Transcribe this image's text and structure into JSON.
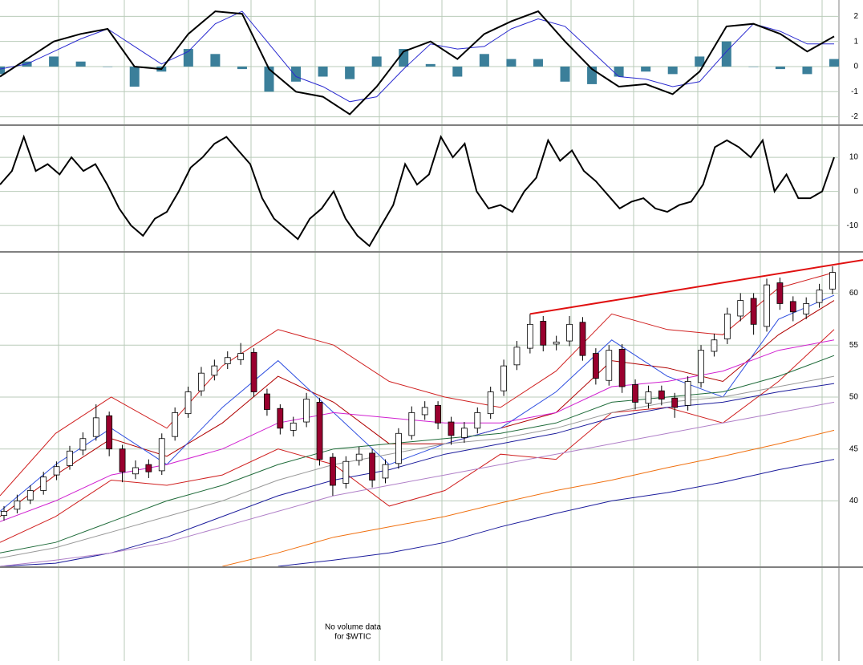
{
  "chart_data": [
    {
      "type": "line",
      "ylim": [
        -2.3,
        2.65
      ],
      "yticks": [
        2,
        1,
        0,
        -1,
        -2
      ],
      "grid": true,
      "series": [
        {
          "type": "bar",
          "color": "#3b7f9a",
          "values": [
            -0.3,
            0.2,
            0.4,
            0.2,
            0.0,
            -0.8,
            -0.2,
            0.7,
            0.5,
            -0.1,
            -1.0,
            -0.6,
            -0.4,
            -0.5,
            0.4,
            0.7,
            0.1,
            -0.4,
            0.5,
            0.3,
            0.3,
            -0.6,
            -0.7,
            -0.4,
            -0.2,
            -0.3,
            0.4,
            1.0,
            0.0,
            -0.1,
            -0.3,
            0.3
          ]
        },
        {
          "type": "line",
          "color": "#2a2ad0",
          "values": [
            -0.1,
            0.1,
            0.6,
            1.1,
            1.5,
            0.8,
            0.1,
            0.6,
            1.7,
            2.2,
            0.9,
            -0.4,
            -0.8,
            -1.4,
            -1.2,
            -0.1,
            0.9,
            0.7,
            0.8,
            1.5,
            1.9,
            1.6,
            0.6,
            -0.4,
            -0.5,
            -0.8,
            -0.6,
            0.6,
            1.7,
            1.4,
            0.9,
            0.9
          ]
        },
        {
          "type": "line",
          "color": "#000000",
          "values": [
            -0.4,
            0.3,
            1.0,
            1.3,
            1.5,
            0.0,
            -0.1,
            1.3,
            2.2,
            2.1,
            -0.1,
            -1.0,
            -1.2,
            -1.9,
            -0.8,
            0.6,
            1.0,
            0.3,
            1.3,
            1.8,
            2.2,
            1.0,
            -0.1,
            -0.8,
            -0.7,
            -1.1,
            -0.2,
            1.6,
            1.7,
            1.3,
            0.6,
            1.2
          ]
        }
      ]
    },
    {
      "type": "line",
      "ylim": [
        -17.5,
        19.2
      ],
      "yticks": [
        10,
        0,
        -10
      ],
      "grid": true,
      "series": [
        {
          "type": "line",
          "color": "#000000",
          "values": [
            2,
            6,
            16,
            6,
            8,
            5,
            10,
            6,
            8,
            2,
            -5,
            -10,
            -13,
            -8,
            -6,
            0,
            7,
            10,
            14,
            16,
            12,
            8,
            -2,
            -8,
            -11,
            -14,
            -8,
            -5,
            0,
            -8,
            -13,
            -16,
            -10,
            -4,
            8,
            2,
            5,
            16,
            10,
            14,
            0,
            -5,
            -4,
            -6,
            0,
            4,
            15,
            9,
            12,
            6,
            3,
            -1,
            -5,
            -3,
            -2,
            -5,
            -6,
            -4,
            -3,
            2,
            13,
            15,
            13,
            10,
            15,
            0,
            5,
            -2,
            -2,
            0,
            10
          ]
        }
      ]
    },
    {
      "type": "candlestick",
      "ylim": [
        33.7,
        63.9
      ],
      "yticks": [
        60,
        55,
        50,
        45,
        40
      ],
      "grid": true,
      "up_color": "#ffffff",
      "down_color": "#99002e",
      "open": [
        38.6,
        39.2,
        40.1,
        41.0,
        42.5,
        43.4,
        44.9,
        46.2,
        48.2,
        45.0,
        42.6,
        43.5,
        42.9,
        46.2,
        48.4,
        50.6,
        52.1,
        53.2,
        53.6,
        54.3,
        50.3,
        48.9,
        46.8,
        47.6,
        49.5,
        44.2,
        41.7,
        43.9,
        44.6,
        42.2,
        43.6,
        46.3,
        48.3,
        49.2,
        47.6,
        46.1,
        47.0,
        48.4,
        50.6,
        53.1,
        54.7,
        57.3,
        55.1,
        55.4,
        57.2,
        54.2,
        51.6,
        54.6,
        51.2,
        49.4,
        50.6,
        49.9,
        49.2,
        51.4,
        54.4,
        55.6,
        57.8,
        59.5,
        56.8,
        61.0,
        59.2,
        58.0,
        59.1,
        60.4
      ],
      "high": [
        39.5,
        40.6,
        41.5,
        42.8,
        43.8,
        45.3,
        46.6,
        49.3,
        48.6,
        45.4,
        43.9,
        44.0,
        46.5,
        49.0,
        51.0,
        52.9,
        53.6,
        54.4,
        55.2,
        54.7,
        50.8,
        49.3,
        48.1,
        50.4,
        49.9,
        44.6,
        44.3,
        45.2,
        45.0,
        44.0,
        47.0,
        49.1,
        49.6,
        49.6,
        48.1,
        47.6,
        49.0,
        51.0,
        53.6,
        55.4,
        58.0,
        57.8,
        55.9,
        57.8,
        57.7,
        54.7,
        55.0,
        55.1,
        51.7,
        51.1,
        51.1,
        50.4,
        52.0,
        55.0,
        56.1,
        58.6,
        60.0,
        60.0,
        61.4,
        61.5,
        59.7,
        59.6,
        60.9,
        62.6
      ],
      "low": [
        38.1,
        38.8,
        39.7,
        40.6,
        42.0,
        43.0,
        44.4,
        45.8,
        44.3,
        41.8,
        42.1,
        42.2,
        42.5,
        45.8,
        48.0,
        50.1,
        51.6,
        52.7,
        53.1,
        50.0,
        48.2,
        46.4,
        46.2,
        47.1,
        43.4,
        40.5,
        41.2,
        43.4,
        41.3,
        41.7,
        43.1,
        45.9,
        47.8,
        46.9,
        45.4,
        45.6,
        46.5,
        47.9,
        50.1,
        52.6,
        54.2,
        54.4,
        54.5,
        54.9,
        53.5,
        51.2,
        51.1,
        50.4,
        48.8,
        48.9,
        49.2,
        48.0,
        48.7,
        50.9,
        53.9,
        55.1,
        57.3,
        56.0,
        56.3,
        58.4,
        57.3,
        57.5,
        58.6,
        59.9
      ],
      "close": [
        39.0,
        40.0,
        41.0,
        42.3,
        43.3,
        44.8,
        46.0,
        48.0,
        45.0,
        42.8,
        43.2,
        42.8,
        46.0,
        48.5,
        50.5,
        52.3,
        53.0,
        53.8,
        54.2,
        50.5,
        48.8,
        47.0,
        47.5,
        49.8,
        44.0,
        41.5,
        43.8,
        44.5,
        42.0,
        43.5,
        46.5,
        48.5,
        49.0,
        47.5,
        46.3,
        47.0,
        48.5,
        50.5,
        53.0,
        54.8,
        57.0,
        55.0,
        55.3,
        57.0,
        54.0,
        51.8,
        54.5,
        51.0,
        49.5,
        50.5,
        49.8,
        49.0,
        51.5,
        54.5,
        55.5,
        58.0,
        59.3,
        57.0,
        60.8,
        59.0,
        58.2,
        59.0,
        60.3,
        62.0
      ],
      "series": [
        {
          "color": "#d02020",
          "values": [
            40.5,
            46.5,
            50.0,
            47.0,
            53.0,
            56.5,
            55.0,
            51.5,
            50.0,
            49.0,
            52.5,
            58.0,
            56.5,
            56.0,
            60.5,
            62.0
          ]
        },
        {
          "color": "#d02020",
          "values": [
            36.0,
            38.5,
            42.0,
            41.5,
            42.5,
            45.0,
            43.5,
            39.5,
            41.0,
            44.5,
            44.0,
            48.5,
            49.0,
            47.5,
            51.5,
            56.5
          ]
        },
        {
          "color": "#b00000",
          "values": [
            38.5,
            42.5,
            46.0,
            44.3,
            47.5,
            52.0,
            49.5,
            45.5,
            45.5,
            47.0,
            48.5,
            53.5,
            52.8,
            51.5,
            56.0,
            59.3
          ]
        },
        {
          "color": "#3050e0",
          "values": [
            39.0,
            43.5,
            47.0,
            43.5,
            49.0,
            53.5,
            48.5,
            43.5,
            45.5,
            47.0,
            50.5,
            55.5,
            52.0,
            50.0,
            57.5,
            59.8
          ]
        },
        {
          "color": "#d020d0",
          "values": [
            38.0,
            40.0,
            42.5,
            43.5,
            45.0,
            47.5,
            48.5,
            48.0,
            47.5,
            47.5,
            48.5,
            51.0,
            51.5,
            52.5,
            54.5,
            55.5
          ]
        },
        {
          "color": "#1f6b3a",
          "values": [
            35.0,
            36.0,
            38.0,
            40.0,
            41.5,
            43.5,
            45.0,
            45.5,
            46.0,
            46.5,
            47.5,
            49.5,
            50.0,
            50.5,
            52.0,
            54.0
          ]
        },
        {
          "color": "#999999",
          "values": [
            34.5,
            35.5,
            37.0,
            38.5,
            40.0,
            42.0,
            43.5,
            44.5,
            45.5,
            46.0,
            47.0,
            48.5,
            49.5,
            50.0,
            51.0,
            52.0
          ]
        },
        {
          "color": "#1c1c9c",
          "values": [
            33.7,
            34.0,
            35.0,
            36.5,
            38.5,
            40.5,
            42.0,
            43.0,
            44.5,
            45.5,
            46.5,
            48.0,
            49.0,
            49.5,
            50.5,
            51.3
          ]
        },
        {
          "color": "#b080c8",
          "values": [
            33.7,
            34.3,
            35.0,
            36.0,
            37.5,
            39.0,
            40.5,
            41.5,
            42.5,
            43.5,
            44.5,
            45.5,
            46.5,
            47.5,
            48.5,
            49.5
          ]
        },
        {
          "color": "#f07010",
          "values": [
            null,
            null,
            null,
            null,
            33.7,
            35.0,
            36.5,
            37.5,
            38.5,
            39.8,
            41.0,
            42.0,
            43.2,
            44.3,
            45.5,
            46.8
          ]
        },
        {
          "color": "#1c1c9c",
          "values": [
            null,
            null,
            null,
            null,
            null,
            33.7,
            34.3,
            35.0,
            36.0,
            37.5,
            38.8,
            40.0,
            40.8,
            41.8,
            43.0,
            44.0
          ]
        }
      ],
      "trendline": {
        "color": "#e01010",
        "values": [
          58.0,
          63.2
        ]
      }
    }
  ],
  "volume_note": [
    "No volume data",
    "for $WTIC"
  ]
}
